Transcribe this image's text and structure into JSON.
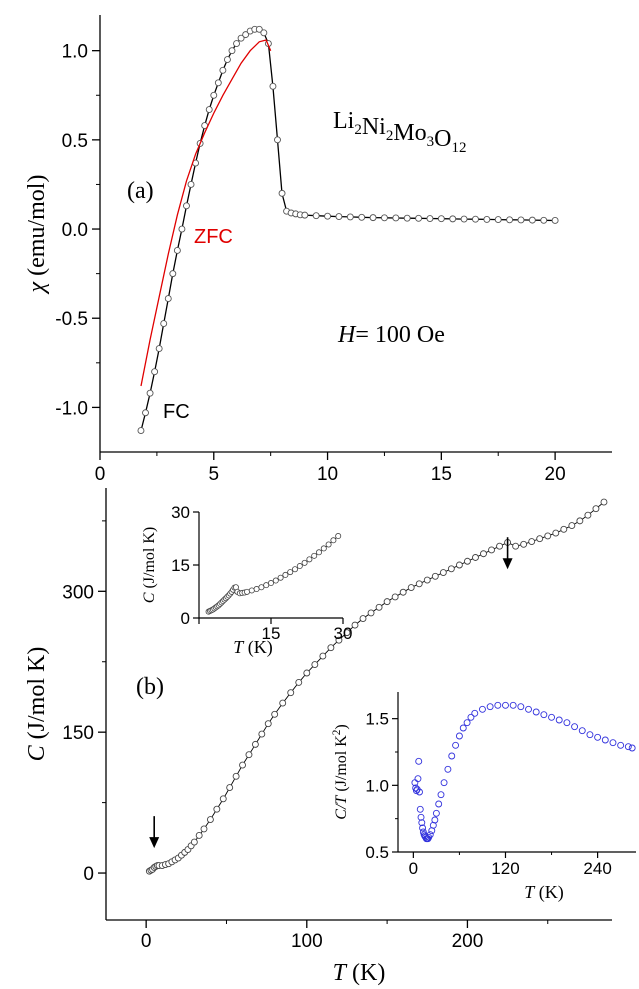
{
  "chart_data": [
    {
      "id": "a",
      "type": "line",
      "panel_label": "(a)",
      "compound_label": {
        "base": "Li",
        "parts": [
          {
            "t": "Li",
            "sub": "2"
          },
          {
            "t": "Ni",
            "sub": "2"
          },
          {
            "t": "Mo",
            "sub": "3"
          },
          {
            "t": "O",
            "sub": "12"
          }
        ]
      },
      "field_label": {
        "italic": "H",
        "rest": "= 100 Oe"
      },
      "ylabel": {
        "symbol": "χ",
        "unit": " (emu/mol)"
      },
      "xlim": [
        0,
        22.5
      ],
      "ylim": [
        -1.25,
        1.2
      ],
      "x_ticks": [
        0,
        5,
        10,
        15,
        20
      ],
      "x_tick_labels": [
        "0",
        "5",
        "10",
        "15",
        "20"
      ],
      "y_ticks": [
        -1.0,
        -0.5,
        0.0,
        0.5,
        1.0
      ],
      "y_tick_labels": [
        "-1.0",
        "-0.5",
        "0.0",
        "0.5",
        "1.0"
      ],
      "series": [
        {
          "name": "FC",
          "color": "#000000",
          "marker": "open-circle",
          "x": [
            1.8,
            2.0,
            2.2,
            2.4,
            2.6,
            2.8,
            3.0,
            3.2,
            3.4,
            3.6,
            3.8,
            4.0,
            4.2,
            4.4,
            4.6,
            4.8,
            5.0,
            5.2,
            5.4,
            5.6,
            5.8,
            6.0,
            6.2,
            6.4,
            6.6,
            6.8,
            7.0,
            7.2,
            7.4,
            7.6,
            7.8,
            8.0,
            8.2,
            8.4,
            8.6,
            8.8,
            9.0,
            9.5,
            10.0,
            10.5,
            11.0,
            11.5,
            12.0,
            12.5,
            13.0,
            13.5,
            14.0,
            14.5,
            15.0,
            15.5,
            16.0,
            16.5,
            17.0,
            17.5,
            18.0,
            18.5,
            19.0,
            19.5,
            20.0
          ],
          "y": [
            -1.13,
            -1.03,
            -0.92,
            -0.8,
            -0.67,
            -0.53,
            -0.39,
            -0.25,
            -0.12,
            0.0,
            0.13,
            0.25,
            0.37,
            0.48,
            0.58,
            0.67,
            0.75,
            0.82,
            0.89,
            0.95,
            1.0,
            1.04,
            1.07,
            1.09,
            1.11,
            1.12,
            1.12,
            1.1,
            1.04,
            0.8,
            0.5,
            0.2,
            0.1,
            0.09,
            0.085,
            0.08,
            0.078,
            0.075,
            0.072,
            0.07,
            0.068,
            0.066,
            0.064,
            0.063,
            0.062,
            0.061,
            0.06,
            0.059,
            0.058,
            0.057,
            0.056,
            0.055,
            0.054,
            0.053,
            0.052,
            0.051,
            0.05,
            0.049,
            0.048
          ]
        },
        {
          "name": "ZFC",
          "color": "#e00000",
          "marker": "none",
          "x": [
            1.8,
            2.2,
            2.6,
            3.0,
            3.4,
            3.8,
            4.2,
            4.6,
            5.0,
            5.4,
            5.8,
            6.2,
            6.6,
            7.0,
            7.3,
            7.5
          ],
          "y": [
            -0.88,
            -0.62,
            -0.38,
            -0.14,
            0.08,
            0.27,
            0.42,
            0.54,
            0.65,
            0.75,
            0.84,
            0.93,
            1.0,
            1.05,
            1.06,
            1.0
          ]
        }
      ]
    },
    {
      "id": "b",
      "type": "scatter",
      "panel_label": "(b)",
      "xlabel": {
        "italic": "T",
        "rest": " (K)"
      },
      "ylabel": {
        "italic": "C",
        "rest": " (J/mol K)"
      },
      "xlim": [
        -25,
        290
      ],
      "ylim": [
        -50,
        410
      ],
      "x_ticks": [
        0,
        100,
        200
      ],
      "x_tick_labels": [
        "0",
        "100",
        "200"
      ],
      "y_ticks": [
        0,
        150,
        300
      ],
      "y_tick_labels": [
        "0",
        "150",
        "300"
      ],
      "arrows": [
        {
          "x": 5,
          "y": 18
        },
        {
          "x": 225,
          "y": 315
        }
      ],
      "series": [
        {
          "name": "",
          "color": "#000000",
          "marker": "open-circle",
          "x": [
            2,
            3,
            4,
            5,
            6,
            7,
            8,
            10,
            12,
            14,
            16,
            18,
            20,
            22,
            24,
            26,
            28,
            30,
            33,
            36,
            40,
            44,
            48,
            52,
            56,
            60,
            64,
            68,
            72,
            76,
            80,
            85,
            90,
            95,
            100,
            105,
            110,
            115,
            120,
            125,
            130,
            135,
            140,
            145,
            150,
            155,
            160,
            165,
            170,
            175,
            180,
            185,
            190,
            195,
            200,
            205,
            210,
            215,
            220,
            225,
            230,
            235,
            240,
            245,
            250,
            255,
            260,
            265,
            270,
            275,
            280,
            285
          ],
          "y": [
            2,
            3,
            4,
            6,
            7,
            8,
            8,
            8,
            9,
            10,
            12,
            14,
            16,
            19,
            22,
            25,
            29,
            33,
            40,
            47,
            57,
            68,
            79,
            91,
            103,
            115,
            126,
            137,
            148,
            159,
            169,
            181,
            192,
            203,
            213,
            222,
            231,
            240,
            248,
            256,
            264,
            271,
            277,
            283,
            289,
            294,
            299,
            304,
            308,
            312,
            316,
            320,
            324,
            328,
            332,
            336,
            340,
            344,
            348,
            352,
            348,
            350,
            353,
            356,
            359,
            362,
            366,
            370,
            375,
            381,
            388,
            395
          ]
        }
      ],
      "insets": [
        {
          "id": "b-inset-1",
          "type": "scatter",
          "xlabel": {
            "italic": "T",
            "rest": " (K)"
          },
          "ylabel": {
            "italic": "C",
            "rest": " (J/mol K)"
          },
          "xlim": [
            0,
            30
          ],
          "ylim": [
            0,
            30
          ],
          "x_ticks": [
            0,
            15,
            30
          ],
          "x_tick_labels": [
            "",
            "15",
            "30"
          ],
          "y_ticks": [
            0,
            15,
            30
          ],
          "y_tick_labels": [
            "0",
            "15",
            "30"
          ],
          "series": [
            {
              "name": "",
              "color": "#000000",
              "marker": "open-circle",
              "x": [
                2,
                2.3,
                2.6,
                2.9,
                3.2,
                3.5,
                3.8,
                4.1,
                4.4,
                4.7,
                5.0,
                5.3,
                5.6,
                5.9,
                6.2,
                6.5,
                6.8,
                7.1,
                7.4,
                7.7,
                8.0,
                8.5,
                9.0,
                9.5,
                10,
                11,
                12,
                13,
                14,
                15,
                16,
                17,
                18,
                19,
                20,
                21,
                22,
                23,
                24,
                25,
                26,
                27,
                28,
                29
              ],
              "y": [
                1.8,
                2.0,
                2.2,
                2.4,
                2.7,
                3.0,
                3.3,
                3.6,
                4.0,
                4.4,
                4.8,
                5.2,
                5.6,
                6.0,
                6.4,
                6.9,
                7.4,
                8.0,
                8.6,
                8.7,
                7.4,
                7.0,
                7.1,
                7.2,
                7.4,
                7.8,
                8.2,
                8.7,
                9.3,
                9.9,
                10.6,
                11.4,
                12.2,
                13.0,
                13.8,
                14.7,
                15.6,
                16.6,
                17.6,
                18.6,
                19.7,
                20.8,
                22.0,
                23.2
              ]
            }
          ]
        },
        {
          "id": "b-inset-2",
          "type": "scatter",
          "xlabel": {
            "italic": "T",
            "rest": " (K)"
          },
          "ylabel": {
            "italic": "C/T",
            "rest": " (J/mol K",
            "sup": "2",
            "end": ")"
          },
          "xlim": [
            -20,
            290
          ],
          "ylim": [
            0.5,
            1.7
          ],
          "x_ticks": [
            0,
            120,
            240
          ],
          "x_tick_labels": [
            "0",
            "120",
            "240"
          ],
          "y_ticks": [
            0.5,
            1.0,
            1.5
          ],
          "y_tick_labels": [
            "0.5",
            "1.0",
            "1.5"
          ],
          "series": [
            {
              "name": "",
              "color": "#3333dd",
              "marker": "open-circle",
              "x": [
                2,
                3,
                4,
                5,
                6,
                7,
                8,
                9,
                10,
                11,
                12,
                13,
                14,
                15,
                16,
                17,
                18,
                19,
                20,
                22,
                24,
                26,
                28,
                30,
                33,
                36,
                40,
                45,
                50,
                55,
                60,
                65,
                70,
                75,
                80,
                90,
                100,
                110,
                120,
                130,
                140,
                150,
                160,
                170,
                180,
                190,
                200,
                210,
                220,
                230,
                240,
                250,
                260,
                270,
                280,
                285
              ],
              "y": [
                1.02,
                0.98,
                0.96,
                0.97,
                1.05,
                1.18,
                0.95,
                0.82,
                0.76,
                0.72,
                0.68,
                0.65,
                0.63,
                0.62,
                0.61,
                0.6,
                0.6,
                0.6,
                0.61,
                0.63,
                0.66,
                0.7,
                0.74,
                0.79,
                0.86,
                0.93,
                1.02,
                1.12,
                1.22,
                1.3,
                1.37,
                1.43,
                1.47,
                1.51,
                1.54,
                1.57,
                1.59,
                1.6,
                1.6,
                1.6,
                1.59,
                1.57,
                1.55,
                1.53,
                1.51,
                1.49,
                1.47,
                1.44,
                1.41,
                1.38,
                1.36,
                1.34,
                1.32,
                1.3,
                1.29,
                1.28
              ]
            }
          ]
        }
      ]
    }
  ]
}
